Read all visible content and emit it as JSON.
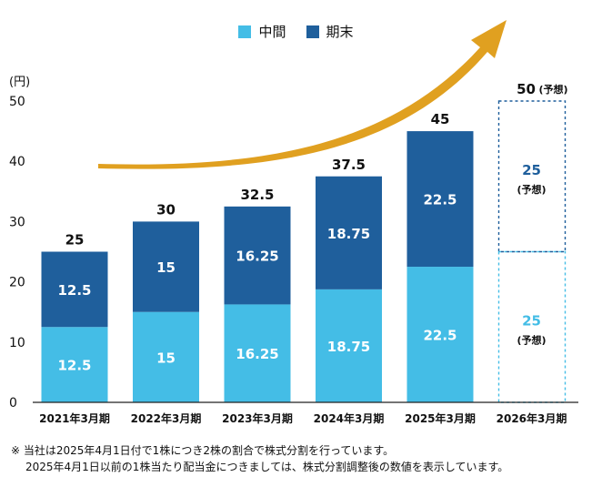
{
  "legend": {
    "items": [
      {
        "label": "中間",
        "color": "#44bde6"
      },
      {
        "label": "期末",
        "color": "#1f5f9c"
      }
    ]
  },
  "chart_data": {
    "type": "bar",
    "stacked": true,
    "ylabel": "(円)",
    "ylim": [
      0,
      50
    ],
    "yticks": [
      "0",
      "10",
      "20",
      "30",
      "40",
      "50"
    ],
    "categories": [
      "2021年3月期",
      "2022年3月期",
      "2023年3月期",
      "2024年3月期",
      "2025年3月期",
      "2026年3月期"
    ],
    "series": [
      {
        "name": "中間",
        "color": "#44bde6",
        "values": [
          12.5,
          15,
          16.25,
          18.75,
          22.5,
          25
        ],
        "labels": [
          "12.5",
          "15",
          "16.25",
          "18.75",
          "22.5",
          "25"
        ]
      },
      {
        "name": "期末",
        "color": "#1f5f9c",
        "values": [
          12.5,
          15,
          16.25,
          18.75,
          22.5,
          25
        ],
        "labels": [
          "12.5",
          "15",
          "16.25",
          "18.75",
          "22.5",
          "25"
        ]
      }
    ],
    "totals": [
      "25",
      "30",
      "32.5",
      "37.5",
      "45",
      "50"
    ],
    "forecast_index": 5,
    "forecast_note": "(予想)",
    "arrow_color": "#e0a020",
    "grid": false
  },
  "footnote": {
    "line1": "※ 当社は2025年4月1日付で1株につき2株の割合で株式分割を行っています。",
    "line2": "2025年4月1日以前の1株当たり配当金につきましては、株式分割調整後の数値を表示しています。"
  }
}
